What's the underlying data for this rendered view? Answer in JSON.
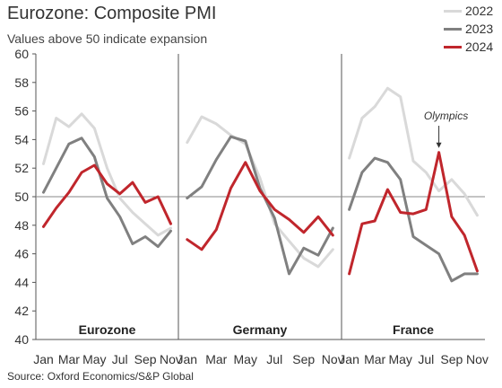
{
  "title": "Eurozone: Composite PMI",
  "subtitle": "Values above 50 indicate expansion",
  "source": "Source: Oxford Economics/S&P Global",
  "colors": {
    "2022": "#d9d9d9",
    "2023": "#808080",
    "2024": "#c0262c",
    "axis": "#555555",
    "ref": "#888888"
  },
  "chart_data": {
    "type": "line",
    "ylim": [
      40,
      60
    ],
    "yticks": [
      40,
      42,
      44,
      46,
      48,
      50,
      52,
      54,
      56,
      58,
      60
    ],
    "reference_line": 50,
    "month_tick_labels": [
      "Jan",
      "Mar",
      "May",
      "Jul",
      "Sep",
      "Nov"
    ],
    "legend": [
      "2022",
      "2023",
      "2024"
    ],
    "panels": [
      {
        "name": "Eurozone",
        "series": [
          {
            "name": "2022",
            "values": [
              52.3,
              55.5,
              54.9,
              55.8,
              54.8,
              52.0,
              49.9,
              48.9,
              48.1,
              47.3,
              47.8
            ]
          },
          {
            "name": "2023",
            "values": [
              50.3,
              52.0,
              53.7,
              54.1,
              52.8,
              49.9,
              48.6,
              46.7,
              47.2,
              46.5,
              47.6
            ]
          },
          {
            "name": "2024",
            "values": [
              47.9,
              49.2,
              50.3,
              51.7,
              52.2,
              50.9,
              50.2,
              51.0,
              49.6,
              50.0,
              48.1
            ]
          }
        ]
      },
      {
        "name": "Germany",
        "series": [
          {
            "name": "2022",
            "values": [
              53.8,
              55.6,
              55.1,
              54.3,
              53.7,
              51.3,
              48.1,
              46.9,
              45.7,
              45.1,
              46.3
            ]
          },
          {
            "name": "2023",
            "values": [
              49.9,
              50.7,
              52.6,
              54.2,
              53.9,
              50.6,
              48.5,
              44.6,
              46.4,
              45.9,
              47.8
            ]
          },
          {
            "name": "2024",
            "values": [
              47.0,
              46.3,
              47.7,
              50.6,
              52.4,
              50.4,
              49.1,
              48.4,
              47.5,
              48.6,
              47.3
            ]
          }
        ]
      },
      {
        "name": "France",
        "series": [
          {
            "name": "2022",
            "values": [
              52.7,
              55.5,
              56.3,
              57.6,
              57.0,
              52.5,
              51.7,
              50.4,
              51.2,
              50.2,
              48.7
            ]
          },
          {
            "name": "2023",
            "values": [
              49.1,
              51.7,
              52.7,
              52.4,
              51.2,
              47.2,
              46.6,
              46.0,
              44.1,
              44.6,
              44.6
            ]
          },
          {
            "name": "2024",
            "values": [
              44.6,
              48.1,
              48.3,
              50.5,
              48.9,
              48.8,
              49.1,
              53.1,
              48.6,
              47.3,
              44.8
            ]
          }
        ]
      }
    ],
    "annotation": {
      "text": "Olympics",
      "panel": 2,
      "month_index": 7
    }
  }
}
